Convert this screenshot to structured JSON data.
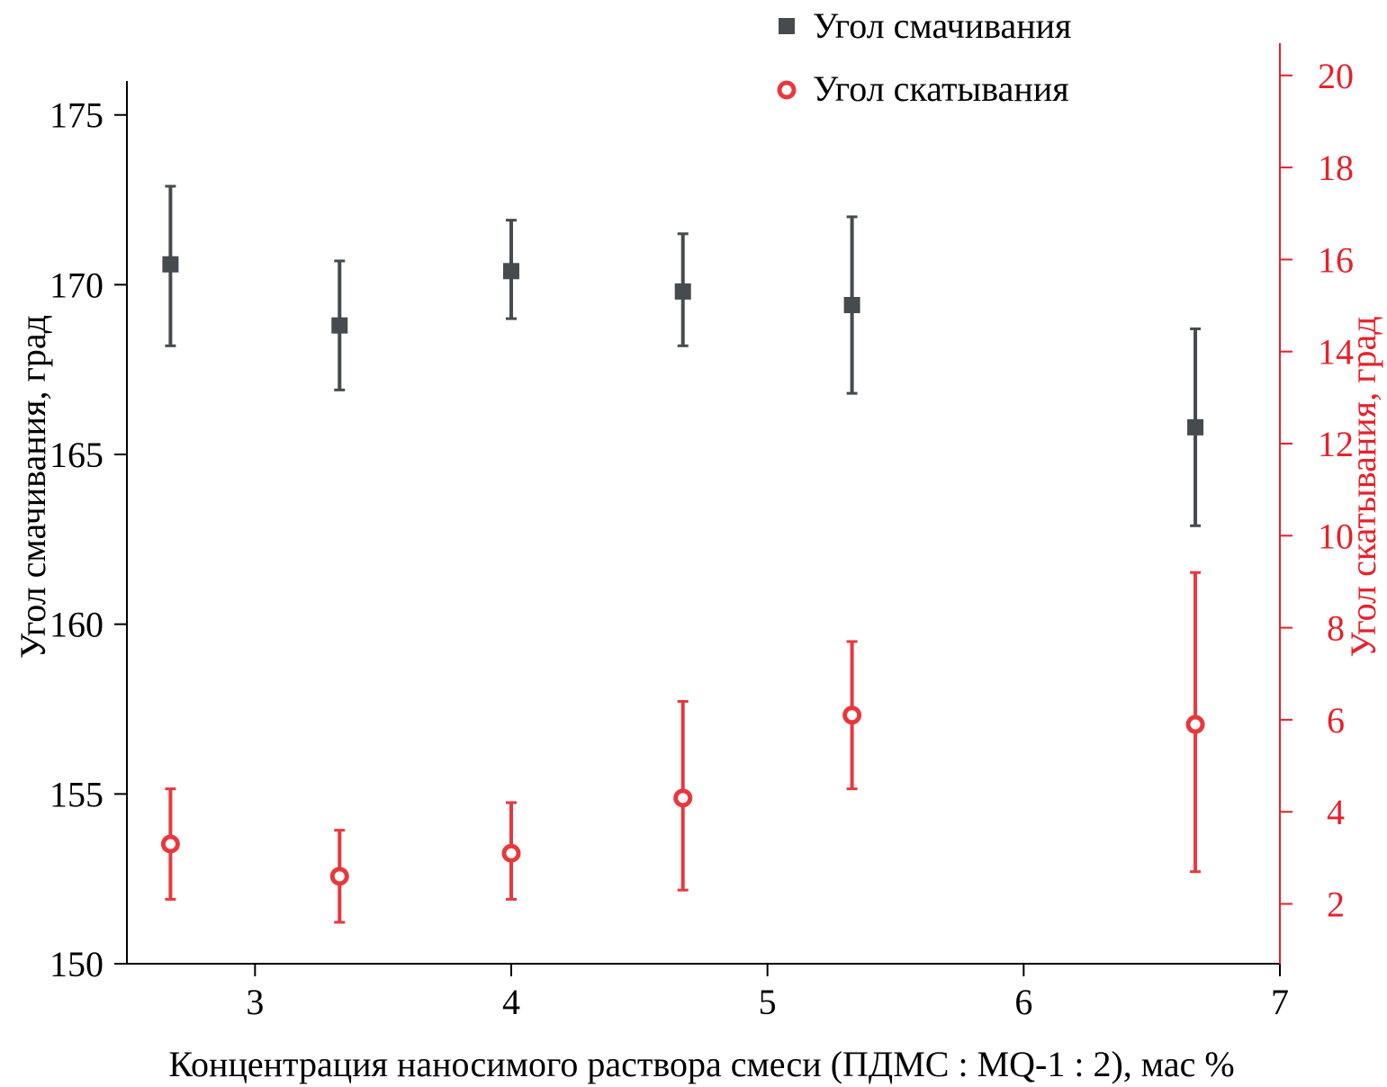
{
  "chart_data": {
    "type": "scatter",
    "title": "",
    "xlabel": "Концентрация наносимого раствора смеси (ПДМС : MQ-1 : 2), мас %",
    "ylabel": "Угол смачивания, град",
    "y2label": "Угол скатывания,  град",
    "xlim": [
      2.5,
      7
    ],
    "ylim": [
      150,
      176
    ],
    "y2lim": [
      0.7,
      20.7
    ],
    "x_ticks": [
      "3",
      "4",
      "5",
      "6",
      "7"
    ],
    "y_ticks": [
      "150",
      "155",
      "160",
      "165",
      "170",
      "175"
    ],
    "y2_ticks": [
      "2",
      "4",
      "6",
      "8",
      "10",
      "12",
      "14",
      "16",
      "18",
      "20"
    ],
    "legend_position": "top-center",
    "colors": {
      "left_axis": "#000000",
      "right_axis": "#e8202a",
      "series1": "#454b4e",
      "series2": "#e8383d"
    },
    "series": [
      {
        "name": "Угол смачивания",
        "axis": "left",
        "marker": "square",
        "x": [
          2.67,
          3.33,
          4.0,
          4.67,
          5.33,
          6.67
        ],
        "values": [
          170.6,
          168.8,
          170.4,
          169.8,
          169.4,
          165.8
        ],
        "err_low": [
          168.2,
          166.9,
          169.0,
          168.2,
          166.8,
          162.9
        ],
        "err_high": [
          172.9,
          170.7,
          171.9,
          171.5,
          172.0,
          168.7
        ]
      },
      {
        "name": "Угол скатывания",
        "axis": "right",
        "marker": "circle",
        "x": [
          2.67,
          3.33,
          4.0,
          4.67,
          5.33,
          6.67
        ],
        "values": [
          3.3,
          2.6,
          3.1,
          4.3,
          6.1,
          5.9
        ],
        "err_low": [
          2.1,
          1.6,
          2.1,
          2.3,
          4.5,
          2.7
        ],
        "err_high": [
          4.5,
          3.6,
          4.2,
          6.4,
          7.7,
          9.2
        ]
      }
    ]
  }
}
